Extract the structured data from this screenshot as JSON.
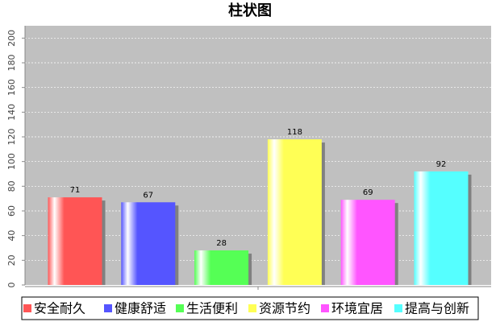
{
  "chart_data": {
    "type": "bar",
    "title": "柱状图",
    "categories": [
      null
    ],
    "series": [
      {
        "name": "安全耐久",
        "color": "#ff5555",
        "values": [
          71
        ]
      },
      {
        "name": "健康舒适",
        "color": "#5555ff",
        "values": [
          67
        ]
      },
      {
        "name": "生活便利",
        "color": "#55ff55",
        "values": [
          28
        ]
      },
      {
        "name": "资源节约",
        "color": "#ffff55",
        "values": [
          118
        ]
      },
      {
        "name": "环境宜居",
        "color": "#ff55ff",
        "values": [
          69
        ]
      },
      {
        "name": "提高与创新",
        "color": "#55ffff",
        "values": [
          92
        ]
      }
    ],
    "ylim": [
      0,
      210
    ],
    "yticks": [
      0,
      20,
      40,
      60,
      80,
      100,
      120,
      140,
      160,
      180,
      200
    ],
    "grid": true,
    "legend": "bottom"
  }
}
